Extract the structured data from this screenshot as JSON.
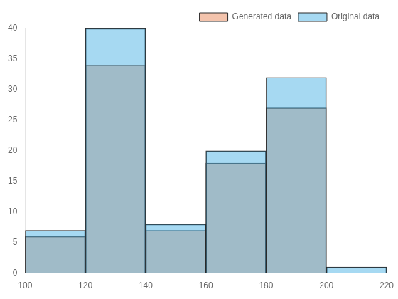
{
  "chart_data": {
    "type": "histogram",
    "bins": [
      100,
      120,
      140,
      160,
      180,
      200,
      220
    ],
    "series": [
      {
        "name": "Generated data",
        "color": "#e8875a",
        "values": [
          6,
          34,
          7,
          18,
          27,
          0
        ]
      },
      {
        "name": "Original data",
        "color": "#4db3e6",
        "values": [
          7,
          40,
          8,
          20,
          32,
          1
        ]
      }
    ],
    "xlim": [
      100,
      220
    ],
    "ylim": [
      0,
      40
    ],
    "xticks": [
      100,
      120,
      140,
      160,
      180,
      200,
      220
    ],
    "yticks": [
      0,
      5,
      10,
      15,
      20,
      25,
      30,
      35,
      40
    ],
    "legend": "upper right",
    "grid": false
  }
}
